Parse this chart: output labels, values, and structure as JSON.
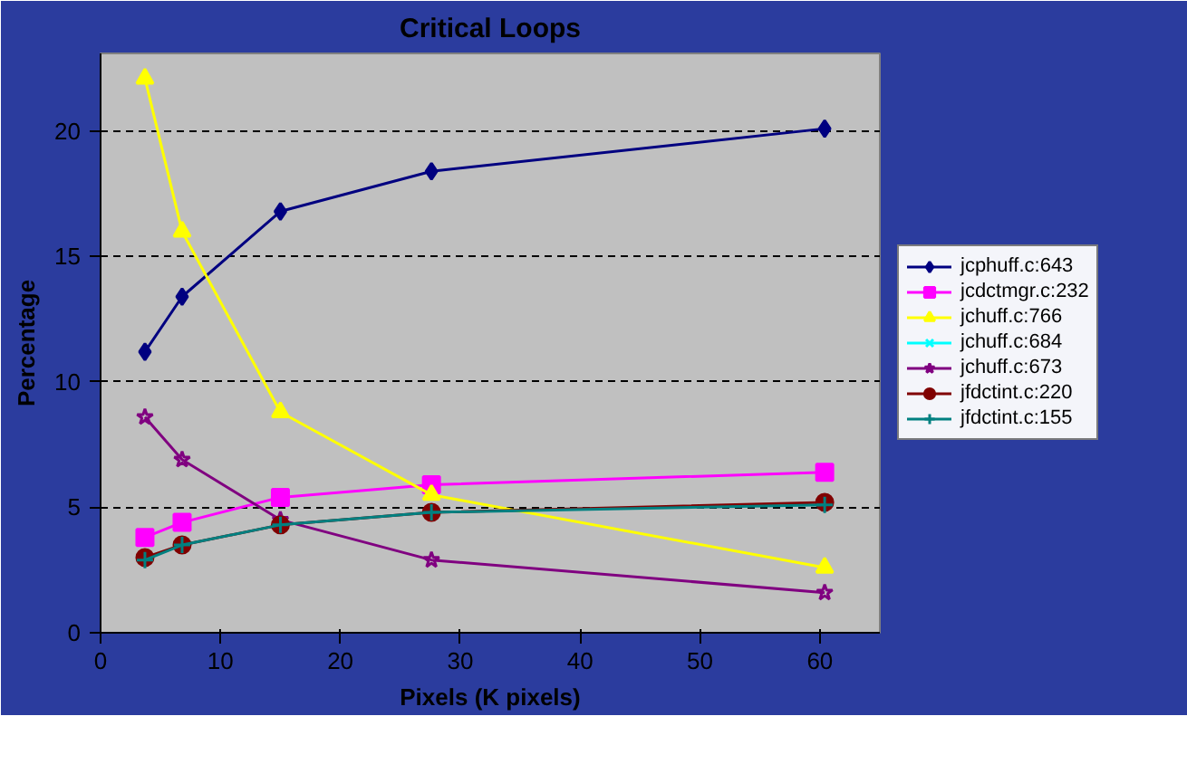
{
  "chart_data": {
    "type": "line",
    "title": "Critical Loops",
    "xlabel": "Pixels (K pixels)",
    "ylabel": "Percentage",
    "x": [
      3.7,
      6.8,
      15,
      27.6,
      60.4
    ],
    "series": [
      {
        "name": "jcphuff.c:643",
        "color": "#000080",
        "marker": "diamond",
        "values": [
          11.2,
          13.4,
          16.8,
          18.4,
          20.1
        ]
      },
      {
        "name": "jcdctmgr.c:232",
        "color": "#ff00ff",
        "marker": "square",
        "values": [
          3.8,
          4.4,
          5.4,
          5.9,
          6.4
        ]
      },
      {
        "name": "jchuff.c:766",
        "color": "#ffff00",
        "marker": "triangle",
        "values": [
          22.1,
          16.0,
          8.8,
          5.5,
          2.6
        ]
      },
      {
        "name": "jchuff.c:684",
        "color": "#00ffff",
        "marker": "x",
        "values": [
          null,
          null,
          null,
          null,
          null
        ]
      },
      {
        "name": "jchuff.c:673",
        "color": "#800080",
        "marker": "star",
        "values": [
          8.6,
          6.9,
          4.5,
          2.9,
          1.6
        ]
      },
      {
        "name": "jfdctint.c:220",
        "color": "#800000",
        "marker": "circle",
        "values": [
          3.0,
          3.5,
          4.3,
          4.8,
          5.2
        ]
      },
      {
        "name": "jfdctint.c:155",
        "color": "#008080",
        "marker": "cross",
        "values": [
          2.9,
          3.5,
          4.3,
          4.8,
          5.1
        ]
      }
    ],
    "xlim": [
      0,
      65
    ],
    "xticks": [
      0,
      10,
      20,
      30,
      40,
      50,
      60
    ],
    "ylim": [
      0,
      23.1
    ],
    "yticks": [
      0,
      5,
      10,
      15,
      20
    ],
    "grid": "y",
    "legend": "right"
  }
}
